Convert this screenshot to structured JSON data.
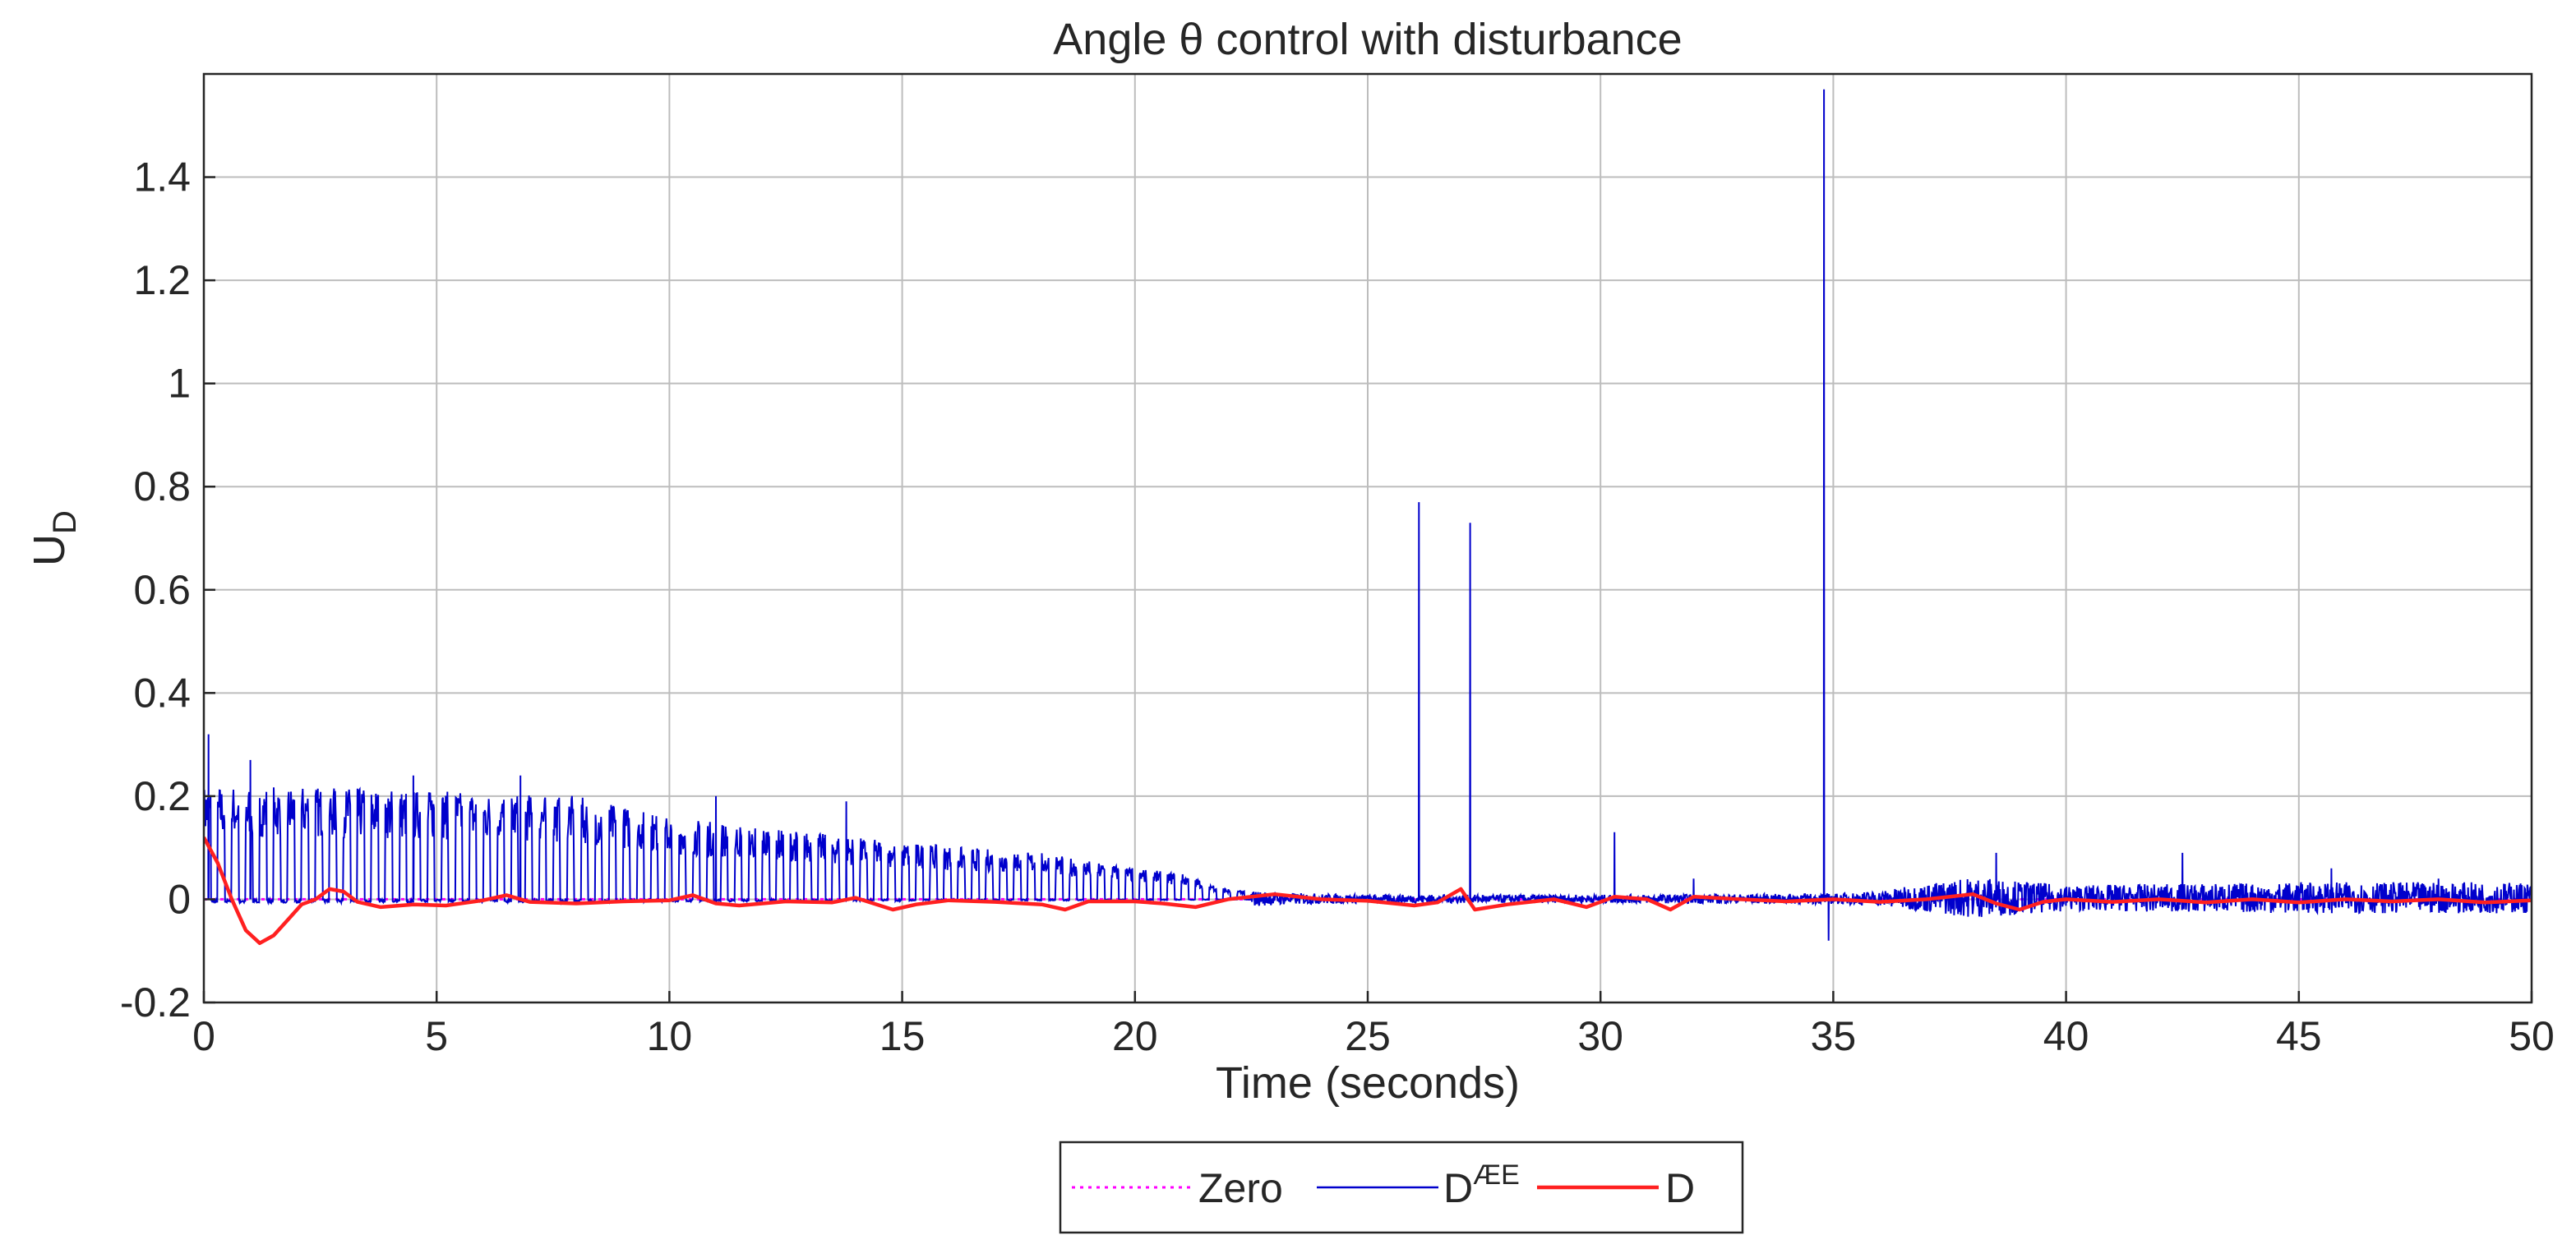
{
  "chart_data": {
    "type": "line",
    "title": "Angle θ control with disturbance",
    "xlabel": "Time (seconds)",
    "ylabel_main": "U",
    "ylabel_sub": "D",
    "xlim": [
      0,
      50
    ],
    "ylim": [
      -0.2,
      1.6
    ],
    "xticks": [
      0,
      5,
      10,
      15,
      20,
      25,
      30,
      35,
      40,
      45,
      50
    ],
    "yticks": [
      -0.2,
      0,
      0.2,
      0.4,
      0.6,
      0.8,
      1,
      1.2,
      1.4
    ],
    "ytick_labels": [
      "-0.2",
      "0",
      "0.2",
      "0.4",
      "0.6",
      "0.8",
      "1",
      "1.2",
      "1.4"
    ],
    "grid": true,
    "legend_position": "bottom-outside",
    "series": [
      {
        "name": "Zero",
        "color": "#ff00ff",
        "style": "dotted",
        "points": [
          [
            0,
            0
          ],
          [
            50,
            0
          ]
        ]
      },
      {
        "name": "D",
        "name_sup": "ÆE",
        "color": "#0000cc",
        "style": "solid",
        "envelope": [
          [
            0,
            0.22
          ],
          [
            2,
            0.22
          ],
          [
            5,
            0.21
          ],
          [
            8,
            0.2
          ],
          [
            10,
            0.16
          ],
          [
            12,
            0.14
          ],
          [
            15,
            0.11
          ],
          [
            18,
            0.09
          ],
          [
            20,
            0.06
          ],
          [
            21,
            0.05
          ],
          [
            22,
            0.02
          ],
          [
            23,
            0.012
          ],
          [
            25,
            0.008
          ],
          [
            30,
            0.008
          ],
          [
            35,
            0.01
          ],
          [
            36,
            0.015
          ],
          [
            38,
            0.04
          ],
          [
            40,
            0.025
          ],
          [
            45,
            0.03
          ],
          [
            50,
            0.03
          ]
        ],
        "spikes": [
          [
            0.1,
            0.32
          ],
          [
            1.0,
            0.27
          ],
          [
            4.5,
            0.24
          ],
          [
            6.8,
            0.24
          ],
          [
            11.0,
            0.2
          ],
          [
            13.8,
            0.19
          ],
          [
            26.1,
            0.77
          ],
          [
            27.2,
            0.73
          ],
          [
            30.3,
            0.13
          ],
          [
            32.0,
            0.04
          ],
          [
            34.8,
            1.57
          ],
          [
            34.9,
            -0.08
          ],
          [
            38.5,
            0.09
          ],
          [
            42.5,
            0.09
          ],
          [
            45.7,
            0.06
          ],
          [
            48.0,
            0.04
          ]
        ]
      },
      {
        "name": "D",
        "color": "#ff2020",
        "style": "solid",
        "points": [
          [
            0,
            0.12
          ],
          [
            0.3,
            0.07
          ],
          [
            0.6,
            0.0
          ],
          [
            0.9,
            -0.06
          ],
          [
            1.2,
            -0.085
          ],
          [
            1.5,
            -0.07
          ],
          [
            1.8,
            -0.04
          ],
          [
            2.1,
            -0.01
          ],
          [
            2.4,
            0.0
          ],
          [
            2.7,
            0.02
          ],
          [
            3.0,
            0.015
          ],
          [
            3.3,
            -0.005
          ],
          [
            3.8,
            -0.015
          ],
          [
            4.5,
            -0.01
          ],
          [
            5.2,
            -0.012
          ],
          [
            6.0,
            -0.002
          ],
          [
            6.5,
            0.008
          ],
          [
            7.0,
            -0.005
          ],
          [
            8.0,
            -0.008
          ],
          [
            9.0,
            -0.004
          ],
          [
            10.0,
            -0.002
          ],
          [
            10.5,
            0.008
          ],
          [
            11.0,
            -0.008
          ],
          [
            11.5,
            -0.012
          ],
          [
            12.5,
            -0.004
          ],
          [
            13.5,
            -0.006
          ],
          [
            14.0,
            0.003
          ],
          [
            14.8,
            -0.02
          ],
          [
            15.3,
            -0.01
          ],
          [
            16.0,
            -0.002
          ],
          [
            17.0,
            -0.005
          ],
          [
            18.0,
            -0.01
          ],
          [
            18.5,
            -0.02
          ],
          [
            19.0,
            -0.004
          ],
          [
            20.0,
            -0.004
          ],
          [
            20.6,
            -0.008
          ],
          [
            21.3,
            -0.015
          ],
          [
            22.0,
            0.0
          ],
          [
            23.0,
            0.01
          ],
          [
            24.0,
            0.0
          ],
          [
            25.0,
            -0.003
          ],
          [
            26.0,
            -0.012
          ],
          [
            26.5,
            -0.006
          ],
          [
            27.0,
            0.02
          ],
          [
            27.3,
            -0.02
          ],
          [
            28.0,
            -0.01
          ],
          [
            29.0,
            0.0
          ],
          [
            29.7,
            -0.015
          ],
          [
            30.3,
            0.005
          ],
          [
            31.0,
            0.0
          ],
          [
            31.5,
            -0.02
          ],
          [
            32.0,
            0.005
          ],
          [
            33.0,
            0.0
          ],
          [
            34.0,
            -0.004
          ],
          [
            35.0,
            0.0
          ],
          [
            36.0,
            -0.005
          ],
          [
            37.0,
            0.0
          ],
          [
            38.0,
            0.01
          ],
          [
            38.5,
            -0.008
          ],
          [
            39.0,
            -0.02
          ],
          [
            39.5,
            -0.005
          ],
          [
            40.0,
            0.0
          ],
          [
            41.0,
            -0.005
          ],
          [
            42.0,
            0.0
          ],
          [
            43.0,
            -0.006
          ],
          [
            44.0,
            0.0
          ],
          [
            45.0,
            -0.006
          ],
          [
            46.0,
            0.0
          ],
          [
            47.0,
            -0.004
          ],
          [
            48.0,
            0.0
          ],
          [
            49.0,
            -0.006
          ],
          [
            50.0,
            -0.002
          ]
        ]
      }
    ]
  }
}
